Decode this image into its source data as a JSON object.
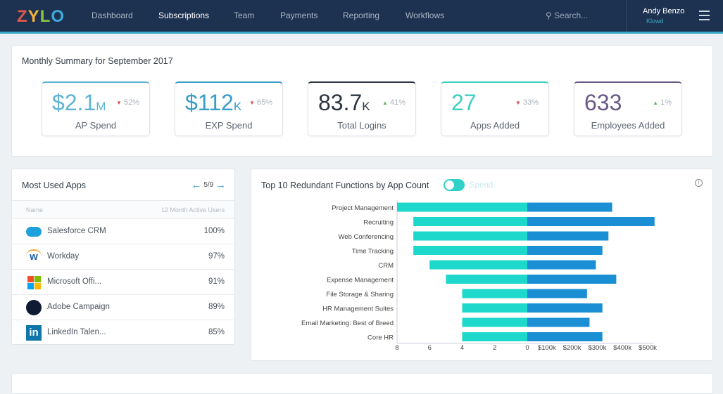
{
  "header": {
    "logo": "ZYLO",
    "nav": [
      "Dashboard",
      "Subscriptions",
      "Team",
      "Payments",
      "Reporting",
      "Workflows"
    ],
    "active": "Subscriptions",
    "search_placeholder": "Search...",
    "user_name": "Andy Benzo",
    "org": "Klowd"
  },
  "summary": {
    "title": "Monthly Summary for September 2017",
    "cards": [
      {
        "value": "$2.1",
        "unit": "M",
        "change": "52%",
        "direction": "down",
        "label": "AP Spend",
        "color": "#5fb3d3"
      },
      {
        "value": "$112",
        "unit": "K",
        "change": "65%",
        "direction": "down",
        "label": "EXP Spend",
        "color": "#3a9cc9"
      },
      {
        "value": "83.7",
        "unit": "K",
        "change": "41%",
        "direction": "up",
        "label": "Total Logins",
        "color": "#2b3440"
      },
      {
        "value": "27",
        "unit": "",
        "change": "33%",
        "direction": "down",
        "label": "Apps Added",
        "color": "#3cd0c0"
      },
      {
        "value": "633",
        "unit": "",
        "change": "1%",
        "direction": "up",
        "label": "Employees Added",
        "color": "#6a5a86"
      }
    ]
  },
  "most_used": {
    "title": "Most Used Apps",
    "pager": "5/9",
    "col_name": "Name",
    "col_users": "12 Month Active Users",
    "rows": [
      {
        "name": "Salesforce CRM",
        "pct": "100%",
        "icon": "salesforce-icon"
      },
      {
        "name": "Workday",
        "pct": "97%",
        "icon": "workday-icon"
      },
      {
        "name": "Microsoft Offi...",
        "pct": "91%",
        "icon": "microsoft-icon"
      },
      {
        "name": "Adobe Campaign",
        "pct": "89%",
        "icon": "adobe-icon"
      },
      {
        "name": "LinkedIn Talen...",
        "pct": "85%",
        "icon": "linkedin-icon"
      }
    ]
  },
  "chart_data": {
    "type": "bar",
    "title": "Top 10 Redundant Functions by App Count",
    "toggle_label": "Spend",
    "categories": [
      "Project Management",
      "Recruiting",
      "Web Conferencing",
      "Time Tracking",
      "CRM",
      "Expense Management",
      "File Storage & Sharing",
      "HR Management Suites",
      "Email Marketing: Best of Breed",
      "Core HR"
    ],
    "series": [
      {
        "name": "App Count",
        "values": [
          8,
          7,
          7,
          7,
          6,
          5,
          4,
          4,
          4,
          4
        ],
        "color": "#1ed8cc",
        "xlim": [
          0,
          8
        ],
        "ticks": [
          "8",
          "6",
          "4",
          "2",
          "0"
        ]
      },
      {
        "name": "Spend",
        "values": [
          337000,
          505000,
          322000,
          298000,
          272000,
          353000,
          237000,
          298000,
          247000,
          298000
        ],
        "color": "#1a8fd3",
        "xlim": [
          0,
          500000
        ],
        "ticks": [
          "$100k",
          "$200k",
          "$300k",
          "$400k",
          "$500k"
        ]
      }
    ]
  }
}
